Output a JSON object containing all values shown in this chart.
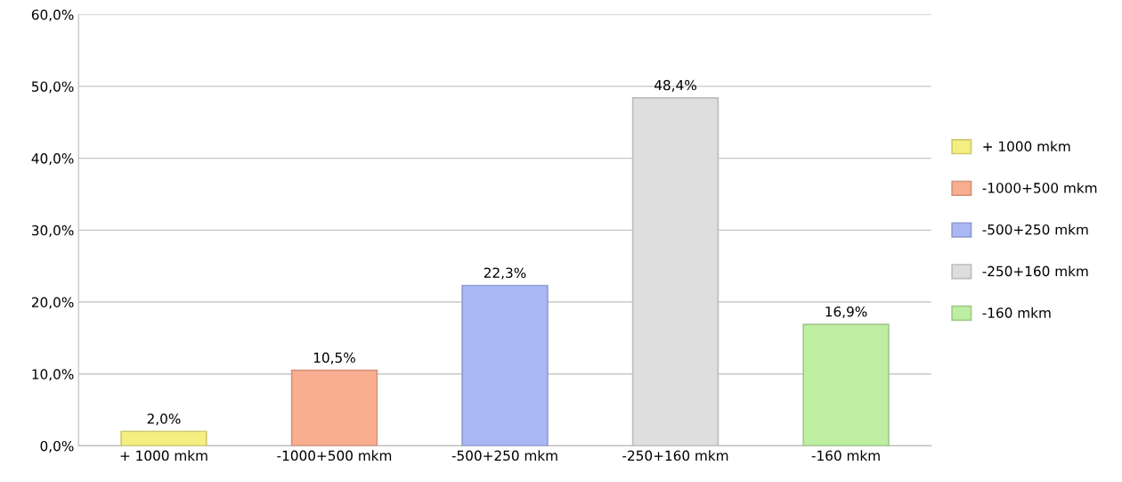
{
  "chart_data": {
    "type": "bar",
    "categories": [
      "+ 1000 mkm",
      "-1000+500 mkm",
      "-500+250 mkm",
      "-250+160 mkm",
      "-160 mkm"
    ],
    "series": [
      {
        "name": "+ 1000 mkm",
        "color": "#f5ee80",
        "values": [
          2.0,
          null,
          null,
          null,
          null
        ],
        "value_labels": [
          "2,0%",
          null,
          null,
          null,
          null
        ]
      },
      {
        "name": "-1000+500 mkm",
        "color": "#f9ae90",
        "values": [
          null,
          10.5,
          null,
          null,
          null
        ],
        "value_labels": [
          null,
          "10,5%",
          null,
          null,
          null
        ]
      },
      {
        "name": "-500+250 mkm",
        "color": "#a9b8f5",
        "values": [
          null,
          null,
          22.3,
          null,
          null
        ],
        "value_labels": [
          null,
          null,
          "22,3%",
          null,
          null
        ]
      },
      {
        "name": "-250+160 mkm",
        "color": "#dedede",
        "values": [
          null,
          null,
          null,
          48.4,
          null
        ],
        "value_labels": [
          null,
          null,
          null,
          "48,4%",
          null
        ]
      },
      {
        "name": "-160 mkm",
        "color": "#bdeea2",
        "values": [
          null,
          null,
          null,
          null,
          16.9
        ],
        "value_labels": [
          null,
          null,
          null,
          null,
          "16,9%"
        ]
      }
    ],
    "ylim": [
      0,
      60
    ],
    "yticks": [
      {
        "value": 0,
        "label": "0,0%"
      },
      {
        "value": 10,
        "label": "10,0%"
      },
      {
        "value": 20,
        "label": "20,0%"
      },
      {
        "value": 30,
        "label": "30,0%"
      },
      {
        "value": 40,
        "label": "40,0%"
      },
      {
        "value": 50,
        "label": "50,0%"
      },
      {
        "value": 60,
        "label": "60,0%"
      }
    ],
    "grid": "y",
    "legend": "right"
  }
}
